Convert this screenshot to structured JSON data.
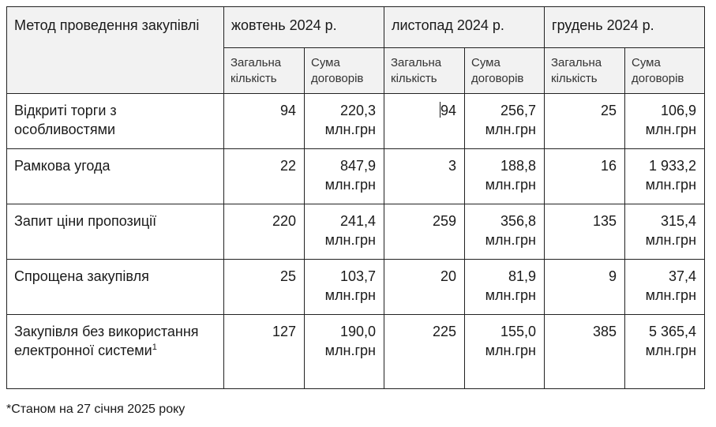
{
  "table": {
    "header": {
      "method_label": "Метод проведення закупівлі",
      "months": [
        {
          "label": "жовтень 2024 р."
        },
        {
          "label": "листопад 2024 р."
        },
        {
          "label": "грудень 2024 р."
        }
      ],
      "sub_count": "Загальна кількість",
      "sub_sum": "Сума договорів"
    },
    "rows": [
      {
        "method": "Відкриті торги з особливостями",
        "footnote_ref": "",
        "cells": [
          {
            "count": "94",
            "sum": "220,3",
            "unit": "млн.грн"
          },
          {
            "count": "94",
            "sum": "256,7",
            "unit": "млн.грн"
          },
          {
            "count": "25",
            "sum": "106,9",
            "unit": "млн.грн"
          }
        ]
      },
      {
        "method": "Рамкова угода",
        "footnote_ref": "",
        "cells": [
          {
            "count": "22",
            "sum": "847,9",
            "unit": "млн.грн"
          },
          {
            "count": "3",
            "sum": "188,8",
            "unit": "млн.грн"
          },
          {
            "count": "16",
            "sum": "1 933,2",
            "unit": "млн.грн"
          }
        ]
      },
      {
        "method": "Запит ціни пропозиції",
        "footnote_ref": "",
        "cells": [
          {
            "count": "220",
            "sum": "241,4",
            "unit": "млн.грн"
          },
          {
            "count": "259",
            "sum": "356,8",
            "unit": "млн.грн"
          },
          {
            "count": "135",
            "sum": "315,4",
            "unit": "млн.грн"
          }
        ]
      },
      {
        "method": "Спрощена закупівля",
        "footnote_ref": "",
        "cells": [
          {
            "count": "25",
            "sum": "103,7",
            "unit": "млн.грн"
          },
          {
            "count": "20",
            "sum": "81,9",
            "unit": "млн.грн"
          },
          {
            "count": "9",
            "sum": "37,4",
            "unit": "млн.грн"
          }
        ]
      },
      {
        "method": "Закупівля без використання електронної системи",
        "footnote_ref": "1",
        "cells": [
          {
            "count": "127",
            "sum": "190,0",
            "unit": "млн.грн"
          },
          {
            "count": "225",
            "sum": "155,0",
            "unit": "млн.грн"
          },
          {
            "count": "385",
            "sum": "5 365,4",
            "unit": "млн.грн"
          }
        ]
      }
    ]
  },
  "footnote": "*Станом на 27 січня 2025 року"
}
